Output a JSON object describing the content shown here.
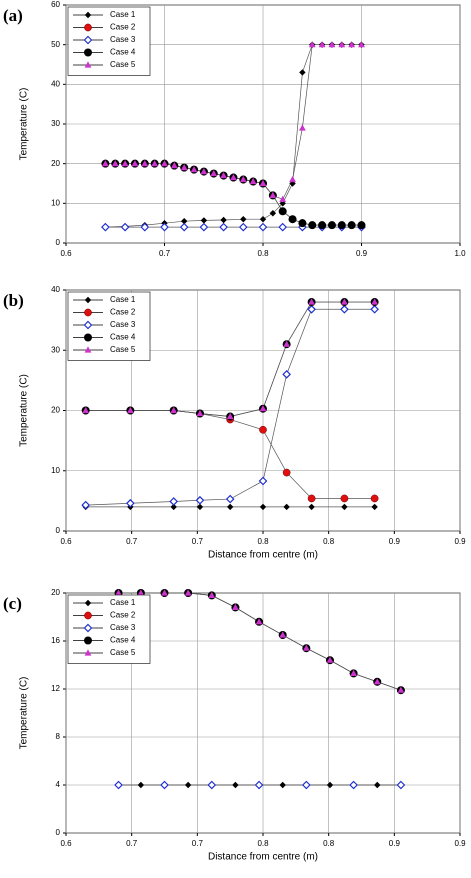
{
  "chart_data": [
    {
      "type": "line",
      "label": "(a)",
      "y_label": "Temperature (C)",
      "grid": true,
      "legend": "upper left",
      "xlim": [
        0.6,
        1.0
      ],
      "xticks": [
        0.6,
        0.7,
        0.8,
        0.9,
        {
          "value": 1,
          "label": "1.0"
        }
      ],
      "ylim": [
        0,
        60
      ],
      "yticks": [
        0,
        10,
        20,
        30,
        40,
        50,
        60
      ],
      "series": [
        {
          "name": "Case 1",
          "color": "#000000",
          "marker": "diamond",
          "x": [
            0.64,
            0.66,
            0.68,
            0.7,
            0.72,
            0.74,
            0.76,
            0.78,
            0.8,
            0.81,
            0.82,
            0.83,
            0.84,
            0.85,
            0.86,
            0.87,
            0.88,
            0.89,
            0.9
          ],
          "values": [
            4,
            4.2,
            4.5,
            5,
            5.5,
            5.7,
            5.8,
            6,
            6,
            7.5,
            10,
            15,
            43,
            50,
            50,
            50,
            50,
            50,
            50
          ]
        },
        {
          "name": "Case 2",
          "color": "#e01010",
          "marker": "circle",
          "x": [
            0.64,
            0.65,
            0.66,
            0.67,
            0.68,
            0.69,
            0.7,
            0.71,
            0.72,
            0.73,
            0.74,
            0.75,
            0.76,
            0.77,
            0.78,
            0.79,
            0.8,
            0.81,
            0.82,
            0.83,
            0.84,
            0.85,
            0.86,
            0.87,
            0.88,
            0.89,
            0.9
          ],
          "values": [
            20,
            20,
            20,
            20,
            20,
            20,
            20,
            19.5,
            19,
            18.5,
            18,
            17.5,
            17,
            16.5,
            16,
            15.5,
            15,
            12,
            8,
            6,
            5,
            4.5,
            4.5,
            4.5,
            4.5,
            4.5,
            4.5
          ]
        },
        {
          "name": "Case 3",
          "color": "#1f2fd0",
          "marker": "open-diamond",
          "x": [
            0.64,
            0.66,
            0.68,
            0.7,
            0.72,
            0.74,
            0.76,
            0.78,
            0.8,
            0.82,
            0.84,
            0.86,
            0.88,
            0.9
          ],
          "values": [
            4,
            4,
            4,
            4,
            4,
            4,
            4,
            4,
            4,
            4,
            4,
            4,
            4,
            4
          ]
        },
        {
          "name": "Case 4",
          "color": "#000000",
          "marker": "big-circle",
          "x": [
            0.64,
            0.65,
            0.66,
            0.67,
            0.68,
            0.69,
            0.7,
            0.71,
            0.72,
            0.73,
            0.74,
            0.75,
            0.76,
            0.77,
            0.78,
            0.79,
            0.8,
            0.81,
            0.82,
            0.83,
            0.84,
            0.85,
            0.86,
            0.87,
            0.88,
            0.89,
            0.9
          ],
          "values": [
            20,
            20,
            20,
            20,
            20,
            20,
            20,
            19.5,
            19,
            18.5,
            18,
            17.5,
            17,
            16.5,
            16,
            15.5,
            15,
            12,
            8,
            6,
            5,
            4.5,
            4.5,
            4.5,
            4.5,
            4.5,
            4.5
          ]
        },
        {
          "name": "Case 5",
          "color": "#cc33cc",
          "marker": "triangle",
          "x": [
            0.64,
            0.65,
            0.66,
            0.67,
            0.68,
            0.69,
            0.7,
            0.71,
            0.72,
            0.73,
            0.74,
            0.75,
            0.76,
            0.77,
            0.78,
            0.79,
            0.8,
            0.81,
            0.82,
            0.83,
            0.84,
            0.85,
            0.86,
            0.87,
            0.88,
            0.89,
            0.9
          ],
          "values": [
            20,
            20,
            20,
            20,
            20,
            20,
            20,
            19.5,
            19,
            18.5,
            18,
            17.5,
            17,
            16.5,
            16,
            15.5,
            15,
            12,
            11,
            16,
            29,
            50,
            50,
            50,
            50,
            50,
            50
          ]
        }
      ]
    },
    {
      "type": "line",
      "label": "(b)",
      "y_label": "Temperature (C)",
      "x_label": "Distance from centre (m)",
      "grid": true,
      "legend": "upper left",
      "xlim": [
        0.6,
        0.9
      ],
      "xticks": [
        0.6,
        {
          "value": 0.65,
          "label": "0.7"
        },
        0.7,
        {
          "value": 0.75,
          "label": "0.8"
        },
        0.8,
        {
          "value": 0.85,
          "label": "0.9"
        },
        0.9
      ],
      "ylim": [
        0,
        40
      ],
      "yticks": [
        0,
        10,
        20,
        30,
        40
      ],
      "series": [
        {
          "name": "Case 1",
          "color": "#000000",
          "marker": "diamond",
          "x": [
            0.615,
            0.649,
            0.682,
            0.702,
            0.725,
            0.75,
            0.768,
            0.787,
            0.812,
            0.835
          ],
          "values": [
            4,
            4,
            4,
            4,
            4,
            4,
            4,
            4,
            4,
            4
          ]
        },
        {
          "name": "Case 2",
          "color": "#e01010",
          "marker": "circle",
          "x": [
            0.615,
            0.649,
            0.682,
            0.702,
            0.725,
            0.75,
            0.768,
            0.787,
            0.812,
            0.835
          ],
          "values": [
            20,
            20,
            20,
            19.5,
            18.5,
            16.8,
            9.7,
            5.4,
            5.4,
            5.4
          ]
        },
        {
          "name": "Case 3",
          "color": "#1f2fd0",
          "marker": "open-diamond",
          "x": [
            0.615,
            0.649,
            0.682,
            0.702,
            0.725,
            0.75,
            0.768,
            0.787,
            0.812,
            0.835
          ],
          "values": [
            4.3,
            4.6,
            4.9,
            5.1,
            5.3,
            8.3,
            26,
            36.8,
            36.8,
            36.8
          ]
        },
        {
          "name": "Case 4",
          "color": "#000000",
          "marker": "big-circle",
          "x": [
            0.615,
            0.649,
            0.682,
            0.702,
            0.725,
            0.75,
            0.768,
            0.787,
            0.812,
            0.835
          ],
          "values": [
            20,
            20,
            20,
            19.5,
            19,
            20.3,
            31,
            38,
            38,
            38
          ]
        },
        {
          "name": "Case 5",
          "color": "#cc33cc",
          "marker": "triangle",
          "x": [
            0.615,
            0.649,
            0.682,
            0.702,
            0.725,
            0.75,
            0.768,
            0.787,
            0.812,
            0.835
          ],
          "values": [
            20,
            20,
            20,
            19.5,
            19,
            20.3,
            31,
            38,
            38,
            38
          ]
        }
      ]
    },
    {
      "type": "line",
      "label": "(c)",
      "y_label": "Temperature (C)",
      "x_label": "Distance from centre (m)",
      "grid": true,
      "legend": "upper left",
      "xlim": [
        0.6,
        0.9
      ],
      "xticks": [
        0.6,
        {
          "value": 0.65,
          "label": "0.7"
        },
        0.7,
        {
          "value": 0.75,
          "label": "0.8"
        },
        0.8,
        {
          "value": 0.85,
          "label": "0.9"
        },
        0.9
      ],
      "ylim": [
        0,
        20
      ],
      "yticks": [
        0,
        4,
        8,
        12,
        16,
        20
      ],
      "series": [
        {
          "name": "Case 1",
          "color": "#000000",
          "marker": "diamond",
          "x": [
            0.64,
            0.657,
            0.675,
            0.693,
            0.711,
            0.729,
            0.747,
            0.765,
            0.783,
            0.801,
            0.819,
            0.837,
            0.855
          ],
          "values": [
            4,
            4,
            4,
            4,
            4,
            4,
            4,
            4,
            4,
            4,
            4,
            4,
            4
          ]
        },
        {
          "name": "Case 2",
          "color": "#e01010",
          "marker": "circle",
          "x": [
            0.64,
            0.657,
            0.675,
            0.693,
            0.711,
            0.729,
            0.747,
            0.765,
            0.783,
            0.801,
            0.819,
            0.837,
            0.855
          ],
          "values": [
            20,
            20,
            20,
            20,
            19.8,
            18.8,
            17.6,
            16.5,
            15.4,
            14.4,
            13.3,
            12.6,
            11.9
          ]
        },
        {
          "name": "Case 3",
          "color": "#1f2fd0",
          "marker": "open-diamond",
          "x": [
            0.64,
            0.675,
            0.711,
            0.747,
            0.783,
            0.819,
            0.855
          ],
          "values": [
            4,
            4,
            4,
            4,
            4,
            4,
            4
          ]
        },
        {
          "name": "Case 4",
          "color": "#000000",
          "marker": "big-circle",
          "x": [
            0.64,
            0.657,
            0.675,
            0.693,
            0.711,
            0.729,
            0.747,
            0.765,
            0.783,
            0.801,
            0.819,
            0.837,
            0.855
          ],
          "values": [
            20,
            20,
            20,
            20,
            19.8,
            18.8,
            17.6,
            16.5,
            15.4,
            14.4,
            13.3,
            12.6,
            11.9
          ]
        },
        {
          "name": "Case 5",
          "color": "#cc33cc",
          "marker": "triangle",
          "x": [
            0.64,
            0.657,
            0.675,
            0.693,
            0.711,
            0.729,
            0.747,
            0.765,
            0.783,
            0.801,
            0.819,
            0.837,
            0.855
          ],
          "values": [
            20,
            20,
            20,
            20,
            19.8,
            18.8,
            17.6,
            16.5,
            15.4,
            14.4,
            13.3,
            12.6,
            11.9
          ]
        }
      ]
    }
  ]
}
